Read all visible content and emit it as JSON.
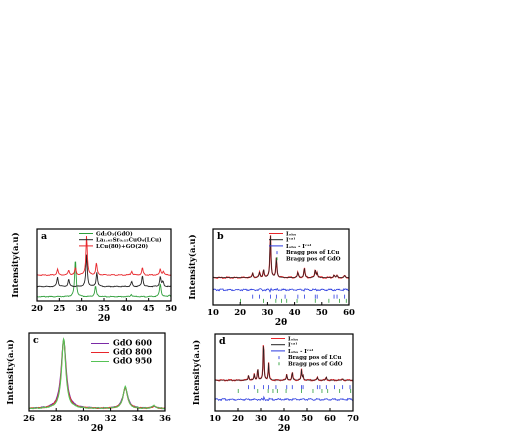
{
  "figure": {
    "panels": [
      {
        "letter": "a",
        "xlabel": "2θ",
        "ylabel": "Intensity(a.u)",
        "xticks": [
          "20",
          "25",
          "30",
          "35",
          "40",
          "45",
          "50"
        ],
        "legend": [
          "Gd₂O₃(GdO)",
          "La₁.₆₅Sr₀.₁₅CuO₄(LCu)",
          "LCu(80)+GO(20)"
        ]
      },
      {
        "letter": "b",
        "xlabel": "2θ",
        "ylabel": "Intensity(a.u)",
        "xticks": [
          "10",
          "20",
          "30",
          "40",
          "50",
          "60"
        ],
        "legend": [
          "Iₒₕₛ",
          "Iᶜᵃˡ",
          "Iₒₕₛ - Iᶜᵃˡ",
          "Bragg pos of LCu",
          "Bragg pos of GdO"
        ]
      },
      {
        "letter": "c",
        "xlabel": "2θ",
        "ylabel": "Intensity(a.u)",
        "xticks": [
          "26",
          "28",
          "30",
          "32",
          "34",
          "36"
        ],
        "legend": [
          "GdO 600",
          "GdO 800",
          "GdO 950"
        ]
      },
      {
        "letter": "d",
        "xlabel": "2θ",
        "ylabel": "Intensity(a.u)",
        "xticks": [
          "10",
          "20",
          "30",
          "40",
          "50",
          "60",
          "70"
        ],
        "legend": [
          "Iₒₕₛ",
          "Iᶜᵃˡ",
          "Iₒₕₛ - Iᶜᵃˡ",
          "Bragg pos of LCu",
          "Bragg pos of GdO"
        ]
      }
    ]
  },
  "chart_data": [
    {
      "type": "line",
      "panel": "a",
      "xlabel": "2θ",
      "ylabel": "Intensity(a.u)",
      "xlim": [
        20,
        50
      ],
      "ylim": [
        0,
        1
      ],
      "grid": false,
      "legend_position": "top-right",
      "series": [
        {
          "name": "Gd₂O₃(GdO)",
          "color": "#2e9e3a",
          "baseline": 0.06,
          "amp": 0.52,
          "width": 0.2,
          "peaks": [
            [
              28.6,
              1.0
            ],
            [
              33.1,
              0.28
            ],
            [
              41.1,
              0.06
            ],
            [
              47.6,
              0.35
            ],
            [
              49.6,
              0.05
            ]
          ]
        },
        {
          "name": "La₁.₆₅Sr₀.₁₅CuO₄(LCu)",
          "color": "#222222",
          "baseline": 0.2,
          "amp": 0.45,
          "width": 0.18,
          "peaks": [
            [
              24.6,
              0.3
            ],
            [
              27.1,
              0.22
            ],
            [
              31.1,
              1.0
            ],
            [
              33.4,
              0.45
            ],
            [
              41.2,
              0.15
            ],
            [
              43.6,
              0.35
            ],
            [
              47.6,
              0.3
            ],
            [
              48.2,
              0.15
            ]
          ]
        },
        {
          "name": "LCu(80)+GO(20)",
          "color": "#e8262b",
          "baseline": 0.36,
          "amp": 0.55,
          "width": 0.18,
          "peaks": [
            [
              24.6,
              0.15
            ],
            [
              27.1,
              0.12
            ],
            [
              28.6,
              0.18
            ],
            [
              31.1,
              1.0
            ],
            [
              33.3,
              0.3
            ],
            [
              41.2,
              0.1
            ],
            [
              43.6,
              0.18
            ],
            [
              47.6,
              0.15
            ],
            [
              48.3,
              0.1
            ]
          ]
        }
      ]
    },
    {
      "type": "line",
      "panel": "b",
      "xlabel": "2θ",
      "ylabel": "Intensity(a.u)",
      "xlim": [
        10,
        60
      ],
      "ylim": [
        0,
        1
      ],
      "grid": false,
      "legend_position": "top-right",
      "baseline": 0.36,
      "amp": 0.58,
      "width": 0.22,
      "peaks": [
        [
          24.6,
          0.1
        ],
        [
          27.1,
          0.12
        ],
        [
          28.6,
          0.18
        ],
        [
          31.1,
          1.0
        ],
        [
          33.3,
          0.45
        ],
        [
          41.2,
          0.12
        ],
        [
          43.6,
          0.22
        ],
        [
          47.6,
          0.18
        ],
        [
          48.3,
          0.1
        ],
        [
          54.5,
          0.06
        ],
        [
          55.6,
          0.05
        ],
        [
          58.4,
          0.05
        ]
      ],
      "difference_level": 0.2,
      "bragg_rows": [
        0.11,
        0.055
      ],
      "colors": {
        "obs": "#e8262b",
        "cal": "#222222",
        "diff": "#2a3adf",
        "bragg1": "#2a3adf",
        "bragg2": "#2e9e3a"
      }
    },
    {
      "type": "line",
      "panel": "c",
      "xlabel": "2θ",
      "ylabel": "Intensity(a.u)",
      "xlim": [
        26,
        36
      ],
      "ylim": [
        0,
        1
      ],
      "grid": false,
      "legend_position": "top-right",
      "series": [
        {
          "name": "GdO 600",
          "color": "#7a2aa6",
          "baseline": 0.03,
          "amp": 0.88,
          "width": 0.22,
          "peaks": [
            [
              28.55,
              1.0
            ],
            [
              33.08,
              0.3
            ],
            [
              35.2,
              0.03
            ]
          ]
        },
        {
          "name": "GdO 800",
          "color": "#e8262b",
          "baseline": 0.03,
          "amp": 0.88,
          "width": 0.2,
          "peaks": [
            [
              28.55,
              1.0
            ],
            [
              33.08,
              0.3
            ],
            [
              35.2,
              0.03
            ]
          ]
        },
        {
          "name": "GdO 950",
          "color": "#55c255",
          "baseline": 0.03,
          "amp": 0.9,
          "width": 0.18,
          "peaks": [
            [
              28.55,
              1.0
            ],
            [
              33.08,
              0.32
            ],
            [
              35.2,
              0.04
            ]
          ]
        }
      ]
    },
    {
      "type": "line",
      "panel": "d",
      "xlabel": "2θ",
      "ylabel": "Intensity(a.u)",
      "xlim": [
        10,
        70
      ],
      "ylim": [
        0,
        1
      ],
      "grid": false,
      "legend_position": "top-right",
      "baseline": 0.4,
      "amp": 0.55,
      "width": 0.2,
      "peaks": [
        [
          24.6,
          0.12
        ],
        [
          27.1,
          0.14
        ],
        [
          28.6,
          0.3
        ],
        [
          31.1,
          1.0
        ],
        [
          33.3,
          0.4
        ],
        [
          41.2,
          0.14
        ],
        [
          43.6,
          0.2
        ],
        [
          47.6,
          0.25
        ],
        [
          48.3,
          0.1
        ],
        [
          54.5,
          0.07
        ],
        [
          58.4,
          0.08
        ],
        [
          65.5,
          0.04
        ]
      ],
      "difference_level": 0.15,
      "bragg_rows": [
        0.31,
        0.26
      ],
      "colors": {
        "obs": "#e8262b",
        "cal": "#222222",
        "diff": "#2a3adf",
        "bragg1": "#2a3adf",
        "bragg2": "#2e9e3a"
      }
    }
  ]
}
